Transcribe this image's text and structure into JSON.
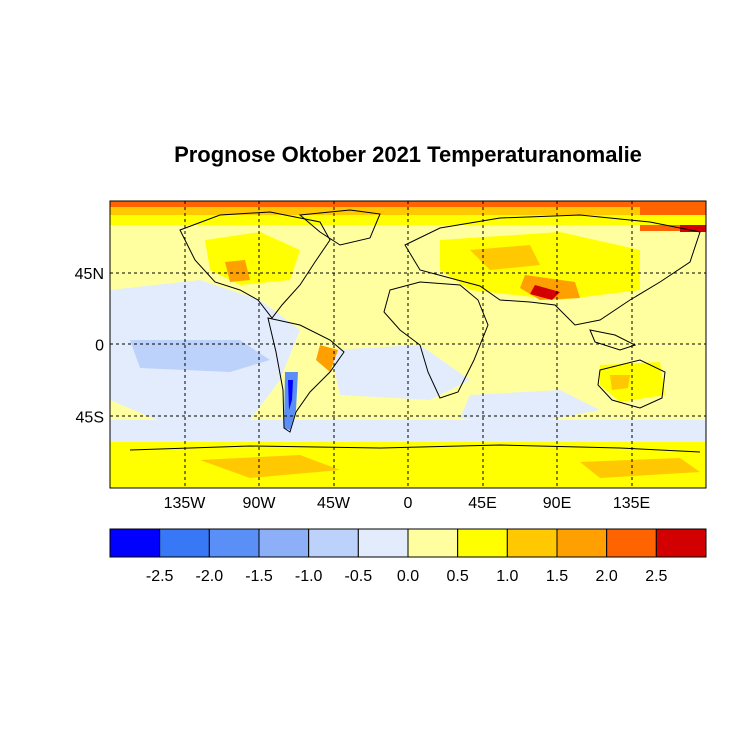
{
  "title": "Prognose Oktober 2021 Temperaturanomalie",
  "map": {
    "projection": "equirectangular",
    "lon_range": [
      -180,
      180
    ],
    "lat_range": [
      -90,
      90
    ],
    "gridlines": "dashed",
    "x_ticks": [
      {
        "lon": -135,
        "label": "135W"
      },
      {
        "lon": -90,
        "label": "90W"
      },
      {
        "lon": -45,
        "label": "45W"
      },
      {
        "lon": 0,
        "label": "0"
      },
      {
        "lon": 45,
        "label": "45E"
      },
      {
        "lon": 90,
        "label": "90E"
      },
      {
        "lon": 135,
        "label": "135E"
      }
    ],
    "y_ticks": [
      {
        "lat": 45,
        "label": "45N"
      },
      {
        "lat": 0,
        "label": "0"
      },
      {
        "lat": -45,
        "label": "45S"
      }
    ]
  },
  "colorbar": {
    "colors": [
      "#0000ff",
      "#3878f6",
      "#5a8ff8",
      "#8caff8",
      "#bcd2fa",
      "#e2ecfd",
      "#ffffa0",
      "#ffff00",
      "#ffc800",
      "#ffa000",
      "#ff6400",
      "#d20000"
    ],
    "boundary_labels": [
      "-2.5",
      "-2.0",
      "-1.5",
      "-1.0",
      "-0.5",
      "0.0",
      "0.5",
      "1.0",
      "1.5",
      "2.0",
      "2.5"
    ]
  }
}
